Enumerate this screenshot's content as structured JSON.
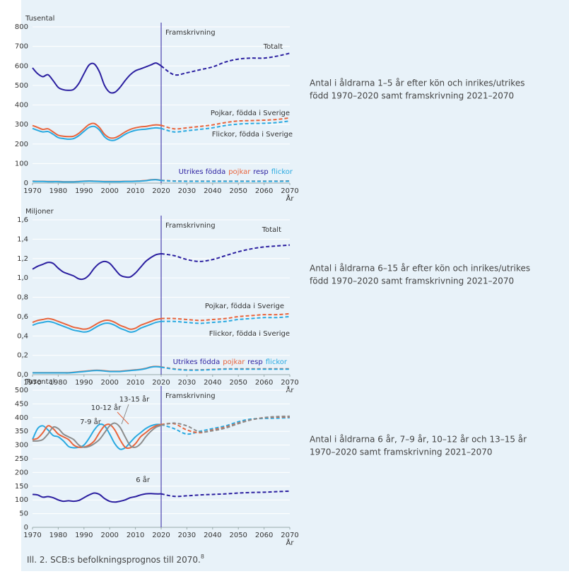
{
  "chart_data": [
    {
      "type": "line",
      "y_label": "Tusental",
      "x_label": "År",
      "description": [
        "Antal i åldrarna 1–5 år efter kön och inrikes/utrikes",
        "född 1970–2020 samt framskrivning 2021–2070"
      ],
      "projection": {
        "x": 2020,
        "label": "Framskrivning"
      },
      "annotations": [
        "Utrikes födda",
        "resp"
      ],
      "x": [
        1970,
        1972,
        1974,
        1976,
        1978,
        1980,
        1982,
        1984,
        1986,
        1988,
        1990,
        1992,
        1994,
        1996,
        1998,
        2000,
        2002,
        2004,
        2006,
        2008,
        2010,
        2012,
        2014,
        2016,
        2018,
        2020,
        2025,
        2030,
        2035,
        2040,
        2045,
        2050,
        2055,
        2060,
        2065,
        2070
      ],
      "xlim": [
        1970,
        2070
      ],
      "xticks": [
        1970,
        1980,
        1990,
        2000,
        2010,
        2020,
        2030,
        2040,
        2050,
        2060,
        2070
      ],
      "ylim": [
        0,
        800
      ],
      "yticks": [
        0,
        100,
        200,
        300,
        400,
        500,
        600,
        700,
        800
      ],
      "grid": true,
      "series": [
        {
          "name": "Totalt",
          "color": "#2b1fa0",
          "values": [
            590,
            560,
            545,
            555,
            525,
            490,
            478,
            475,
            480,
            510,
            560,
            605,
            610,
            570,
            500,
            465,
            465,
            490,
            525,
            555,
            575,
            585,
            595,
            605,
            615,
            600,
            555,
            565,
            580,
            595,
            620,
            635,
            640,
            640,
            650,
            665
          ]
        },
        {
          "name": "Pojkar, födda i Sverige",
          "color": "#e8643c",
          "values": [
            295,
            285,
            275,
            278,
            262,
            245,
            240,
            238,
            240,
            255,
            278,
            300,
            305,
            285,
            250,
            232,
            232,
            245,
            262,
            275,
            283,
            288,
            290,
            295,
            298,
            296,
            278,
            283,
            290,
            298,
            310,
            318,
            320,
            322,
            326,
            334
          ]
        },
        {
          "name": "Flickor, födda i Sverige",
          "color": "#29a9e0",
          "values": [
            280,
            270,
            262,
            264,
            250,
            233,
            228,
            225,
            228,
            243,
            265,
            285,
            290,
            272,
            237,
            220,
            220,
            233,
            250,
            262,
            270,
            274,
            276,
            280,
            283,
            280,
            262,
            268,
            275,
            283,
            295,
            302,
            305,
            306,
            310,
            318
          ]
        },
        {
          "name": "pojkar",
          "color": "#e8643c",
          "values": [
            10,
            9,
            9,
            8,
            8,
            8,
            7,
            7,
            7,
            8,
            10,
            11,
            10,
            9,
            8,
            8,
            8,
            8,
            9,
            9,
            10,
            11,
            13,
            17,
            18,
            14,
            11,
            10,
            10,
            10,
            10,
            10,
            10,
            10,
            10,
            11
          ]
        },
        {
          "name": "flickor",
          "color": "#29a9e0",
          "values": [
            9,
            8,
            8,
            7,
            7,
            7,
            6,
            6,
            6,
            7,
            9,
            10,
            9,
            8,
            7,
            7,
            7,
            7,
            8,
            8,
            9,
            10,
            12,
            16,
            17,
            13,
            10,
            9,
            9,
            9,
            9,
            9,
            9,
            9,
            9,
            10
          ]
        }
      ]
    },
    {
      "type": "line",
      "y_label": "Miljoner",
      "x_label": "År",
      "description": [
        "Antal i åldrarna 6–15 år efter kön och inrikes/utrikes",
        "född 1970–2020 samt framskrivning 2021–2070"
      ],
      "projection": {
        "x": 2020,
        "label": "Framskrivning"
      },
      "annotations": [
        "Utrikes födda",
        "resp"
      ],
      "x": [
        1970,
        1972,
        1974,
        1976,
        1978,
        1980,
        1982,
        1984,
        1986,
        1988,
        1990,
        1992,
        1994,
        1996,
        1998,
        2000,
        2002,
        2004,
        2006,
        2008,
        2010,
        2012,
        2014,
        2016,
        2018,
        2020,
        2025,
        2030,
        2035,
        2040,
        2045,
        2050,
        2055,
        2060,
        2065,
        2070
      ],
      "xlim": [
        1970,
        2070
      ],
      "xticks": [
        1970,
        1980,
        1990,
        2000,
        2010,
        2020,
        2030,
        2040,
        2050,
        2060,
        2070
      ],
      "ylim": [
        0,
        1.6
      ],
      "yticks": [
        {
          "value": 0,
          "label": "0,0"
        },
        {
          "value": 0.2,
          "label": "0,2"
        },
        {
          "value": 0.4,
          "label": "0,4"
        },
        {
          "value": 0.6,
          "label": "0,6"
        },
        {
          "value": 0.8,
          "label": "0,8"
        },
        {
          "value": 1,
          "label": "1,0"
        },
        {
          "value": 1.2,
          "label": "1,2"
        },
        {
          "value": 1.4,
          "label": "1,4"
        },
        {
          "value": 1.6,
          "label": "1,6"
        }
      ],
      "grid": true,
      "series": [
        {
          "name": "Totalt",
          "color": "#2b1fa0",
          "values": [
            1.09,
            1.12,
            1.14,
            1.16,
            1.15,
            1.1,
            1.06,
            1.04,
            1.02,
            0.99,
            0.99,
            1.03,
            1.1,
            1.15,
            1.17,
            1.15,
            1.09,
            1.03,
            1.01,
            1.01,
            1.05,
            1.11,
            1.17,
            1.21,
            1.24,
            1.25,
            1.23,
            1.19,
            1.17,
            1.19,
            1.23,
            1.27,
            1.3,
            1.32,
            1.33,
            1.34
          ]
        },
        {
          "name": "Pojkar, födda i Sverige",
          "color": "#e8643c",
          "values": [
            0.54,
            0.56,
            0.57,
            0.58,
            0.57,
            0.55,
            0.53,
            0.51,
            0.49,
            0.48,
            0.47,
            0.48,
            0.51,
            0.54,
            0.56,
            0.56,
            0.54,
            0.51,
            0.49,
            0.47,
            0.48,
            0.51,
            0.53,
            0.55,
            0.57,
            0.58,
            0.58,
            0.57,
            0.56,
            0.57,
            0.58,
            0.6,
            0.61,
            0.62,
            0.62,
            0.63
          ]
        },
        {
          "name": "Flickor, födda i Sverige",
          "color": "#29a9e0",
          "values": [
            0.51,
            0.53,
            0.54,
            0.55,
            0.54,
            0.52,
            0.5,
            0.48,
            0.46,
            0.45,
            0.44,
            0.45,
            0.48,
            0.51,
            0.53,
            0.53,
            0.51,
            0.48,
            0.46,
            0.44,
            0.45,
            0.48,
            0.5,
            0.52,
            0.54,
            0.55,
            0.55,
            0.54,
            0.53,
            0.54,
            0.55,
            0.57,
            0.58,
            0.59,
            0.59,
            0.6
          ]
        },
        {
          "name": "pojkar",
          "color": "#e8643c",
          "values": [
            0.02,
            0.02,
            0.02,
            0.02,
            0.02,
            0.02,
            0.02,
            0.02,
            0.025,
            0.03,
            0.035,
            0.04,
            0.045,
            0.045,
            0.04,
            0.035,
            0.035,
            0.035,
            0.04,
            0.045,
            0.05,
            0.055,
            0.065,
            0.08,
            0.085,
            0.08,
            0.06,
            0.05,
            0.05,
            0.055,
            0.06,
            0.06,
            0.06,
            0.06,
            0.06,
            0.06
          ]
        },
        {
          "name": "flickor",
          "color": "#29a9e0",
          "values": [
            0.018,
            0.018,
            0.018,
            0.018,
            0.018,
            0.018,
            0.018,
            0.018,
            0.022,
            0.027,
            0.032,
            0.037,
            0.042,
            0.042,
            0.037,
            0.032,
            0.032,
            0.032,
            0.037,
            0.042,
            0.047,
            0.052,
            0.062,
            0.077,
            0.082,
            0.077,
            0.057,
            0.047,
            0.047,
            0.052,
            0.057,
            0.057,
            0.057,
            0.057,
            0.057,
            0.057
          ]
        }
      ]
    },
    {
      "type": "line",
      "y_label": "Tusental",
      "x_label": "År",
      "description": [
        "Antal i åldrarna 6 år, 7–9 år, 10–12 år och 13–15 år",
        "1970–2020 samt framskrivning 2021–2070"
      ],
      "projection": {
        "x": 2020,
        "label": "Framskrivning"
      },
      "x": [
        1970,
        1972,
        1974,
        1976,
        1978,
        1980,
        1982,
        1984,
        1986,
        1988,
        1990,
        1992,
        1994,
        1996,
        1998,
        2000,
        2002,
        2004,
        2006,
        2008,
        2010,
        2012,
        2014,
        2016,
        2018,
        2020,
        2025,
        2030,
        2035,
        2040,
        2045,
        2050,
        2055,
        2060,
        2065,
        2070
      ],
      "xlim": [
        1970,
        2070
      ],
      "xticks": [
        1970,
        1980,
        1990,
        2000,
        2010,
        2020,
        2030,
        2040,
        2050,
        2060,
        2070
      ],
      "ylim": [
        0,
        500
      ],
      "yticks": [
        0,
        50,
        100,
        150,
        200,
        250,
        300,
        350,
        400,
        450,
        500
      ],
      "grid": true,
      "series": [
        {
          "name": "6 år",
          "color": "#2b1fa0",
          "values": [
            120,
            118,
            110,
            112,
            108,
            100,
            95,
            97,
            95,
            98,
            108,
            118,
            125,
            120,
            105,
            95,
            92,
            95,
            100,
            108,
            112,
            118,
            122,
            123,
            122,
            122,
            113,
            115,
            118,
            120,
            122,
            125,
            127,
            128,
            130,
            132
          ]
        },
        {
          "name": "7-9 år",
          "color": "#29a9e0",
          "values": [
            320,
            360,
            370,
            355,
            335,
            330,
            315,
            295,
            290,
            292,
            300,
            325,
            355,
            375,
            370,
            340,
            305,
            285,
            290,
            310,
            330,
            345,
            360,
            370,
            375,
            375,
            360,
            340,
            350,
            360,
            370,
            385,
            395,
            397,
            398,
            400
          ]
        },
        {
          "name": "10-12 år",
          "color": "#e8643c",
          "values": [
            320,
            325,
            345,
            370,
            360,
            340,
            330,
            320,
            300,
            292,
            293,
            300,
            315,
            345,
            370,
            375,
            355,
            320,
            292,
            290,
            305,
            330,
            345,
            360,
            370,
            375,
            378,
            355,
            345,
            355,
            365,
            380,
            392,
            400,
            402,
            403
          ]
        },
        {
          "name": "13-15 år",
          "color": "#8c8c8c",
          "values": [
            315,
            315,
            320,
            340,
            365,
            360,
            340,
            330,
            320,
            300,
            292,
            295,
            305,
            320,
            345,
            370,
            380,
            365,
            330,
            298,
            292,
            305,
            330,
            350,
            365,
            372,
            380,
            370,
            348,
            352,
            362,
            378,
            392,
            400,
            404,
            405
          ]
        }
      ]
    }
  ],
  "caption": "Ill. 2. SCB:s befolkningsprognos till 2070.",
  "caption_note": "8"
}
